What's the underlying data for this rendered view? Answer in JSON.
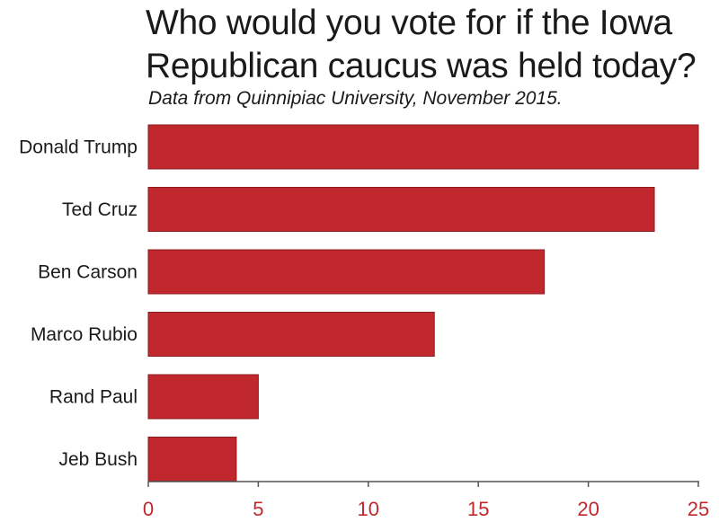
{
  "chart_data": {
    "type": "bar",
    "orientation": "horizontal",
    "title": "Who would you vote for if the Iowa Republican caucus was held today?",
    "subtitle": "Data from Quinnipiac University, November 2015.",
    "categories": [
      "Donald Trump",
      "Ted Cruz",
      "Ben Carson",
      "Marco Rubio",
      "Rand Paul",
      "Jeb Bush"
    ],
    "values": [
      25,
      23,
      18,
      13,
      5,
      4
    ],
    "xlim": [
      0,
      25
    ],
    "xticks": [
      "0",
      "5",
      "10",
      "15",
      "20",
      "25"
    ],
    "bar_color": "#c0282d",
    "tick_color": "#c0282d",
    "grid": false,
    "legend": "none"
  }
}
